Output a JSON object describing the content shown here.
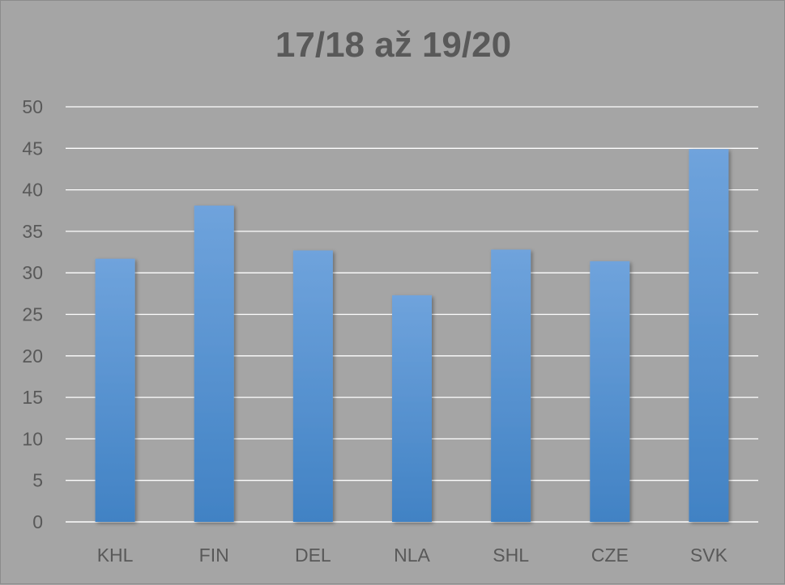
{
  "chart_data": {
    "type": "bar",
    "title": "17/18 až 19/20",
    "xlabel": "",
    "ylabel": "",
    "categories": [
      "KHL",
      "FIN",
      "DEL",
      "NLA",
      "SHL",
      "CZE",
      "SVK"
    ],
    "values": [
      31.7,
      38.1,
      32.7,
      27.3,
      32.8,
      31.4,
      44.9
    ],
    "ylim": [
      0,
      50
    ],
    "yticks": [
      0,
      5,
      10,
      15,
      20,
      25,
      30,
      35,
      40,
      45,
      50
    ],
    "grid": true,
    "legend": "none",
    "colors": {
      "bar_top": "#6fa3dc",
      "bar_bottom": "#4182c4",
      "gridline": "#ffffff",
      "text": "#595959",
      "background": "#a5a5a5"
    }
  }
}
